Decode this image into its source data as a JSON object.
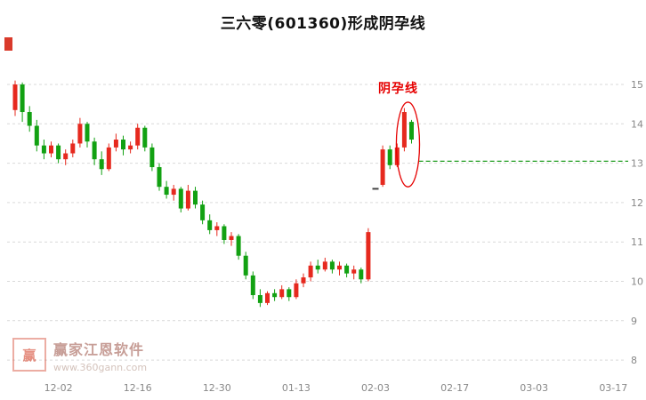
{
  "chart_data": {
    "type": "candlestick",
    "title": "三六零(601360)形成阴孕线",
    "annotation_label": "阴孕线",
    "y_ticks": [
      15,
      14,
      13,
      12,
      11,
      10,
      9,
      8
    ],
    "ylim": [
      7.8,
      15.8
    ],
    "grid": "dashed-horizontal",
    "x_ticks": [
      {
        "label": "12-02",
        "index": 6
      },
      {
        "label": "12-16",
        "index": 17
      },
      {
        "label": "12-30",
        "index": 28
      },
      {
        "label": "01-13",
        "index": 39
      },
      {
        "label": "02-03",
        "index": 50
      },
      {
        "label": "02-17",
        "index": 61
      },
      {
        "label": "03-03",
        "index": 72
      },
      {
        "label": "03-17",
        "index": 83
      }
    ],
    "reference_line": {
      "value": 13.05,
      "style": "dashed",
      "start_index": 56
    },
    "ellipse": {
      "start_index": 54,
      "end_index": 55,
      "top_value": 14.55,
      "bottom_value": 12.4
    },
    "candles": [
      {
        "o": 14.35,
        "h": 15.1,
        "l": 14.2,
        "c": 15.0
      },
      {
        "o": 15.0,
        "h": 15.05,
        "l": 14.05,
        "c": 14.3
      },
      {
        "o": 14.3,
        "h": 14.45,
        "l": 13.8,
        "c": 13.95
      },
      {
        "o": 13.95,
        "h": 14.1,
        "l": 13.3,
        "c": 13.45
      },
      {
        "o": 13.45,
        "h": 13.6,
        "l": 13.1,
        "c": 13.25
      },
      {
        "o": 13.25,
        "h": 13.55,
        "l": 13.15,
        "c": 13.45
      },
      {
        "o": 13.45,
        "h": 13.5,
        "l": 13.0,
        "c": 13.1
      },
      {
        "o": 13.1,
        "h": 13.35,
        "l": 12.95,
        "c": 13.25
      },
      {
        "o": 13.25,
        "h": 13.6,
        "l": 13.15,
        "c": 13.5
      },
      {
        "o": 13.5,
        "h": 14.15,
        "l": 13.4,
        "c": 14.0
      },
      {
        "o": 14.0,
        "h": 14.05,
        "l": 13.4,
        "c": 13.55
      },
      {
        "o": 13.55,
        "h": 13.65,
        "l": 12.95,
        "c": 13.1
      },
      {
        "o": 13.1,
        "h": 13.3,
        "l": 12.7,
        "c": 12.85
      },
      {
        "o": 12.85,
        "h": 13.5,
        "l": 12.8,
        "c": 13.4
      },
      {
        "o": 13.4,
        "h": 13.75,
        "l": 13.3,
        "c": 13.6
      },
      {
        "o": 13.6,
        "h": 13.7,
        "l": 13.2,
        "c": 13.35
      },
      {
        "o": 13.35,
        "h": 13.55,
        "l": 13.25,
        "c": 13.45
      },
      {
        "o": 13.45,
        "h": 14.0,
        "l": 13.35,
        "c": 13.9
      },
      {
        "o": 13.9,
        "h": 13.95,
        "l": 13.3,
        "c": 13.4
      },
      {
        "o": 13.4,
        "h": 13.5,
        "l": 12.8,
        "c": 12.9
      },
      {
        "o": 12.9,
        "h": 13.0,
        "l": 12.3,
        "c": 12.4
      },
      {
        "o": 12.4,
        "h": 12.55,
        "l": 12.1,
        "c": 12.2
      },
      {
        "o": 12.2,
        "h": 12.45,
        "l": 12.05,
        "c": 12.35
      },
      {
        "o": 12.35,
        "h": 12.4,
        "l": 11.75,
        "c": 11.85
      },
      {
        "o": 11.85,
        "h": 12.45,
        "l": 11.8,
        "c": 12.3
      },
      {
        "o": 12.3,
        "h": 12.4,
        "l": 11.85,
        "c": 11.95
      },
      {
        "o": 11.95,
        "h": 12.05,
        "l": 11.45,
        "c": 11.55
      },
      {
        "o": 11.55,
        "h": 11.7,
        "l": 11.2,
        "c": 11.3
      },
      {
        "o": 11.3,
        "h": 11.5,
        "l": 11.15,
        "c": 11.4
      },
      {
        "o": 11.4,
        "h": 11.45,
        "l": 10.95,
        "c": 11.05
      },
      {
        "o": 11.05,
        "h": 11.25,
        "l": 10.9,
        "c": 11.15
      },
      {
        "o": 11.15,
        "h": 11.2,
        "l": 10.55,
        "c": 10.65
      },
      {
        "o": 10.65,
        "h": 10.75,
        "l": 10.05,
        "c": 10.15
      },
      {
        "o": 10.15,
        "h": 10.25,
        "l": 9.55,
        "c": 9.65
      },
      {
        "o": 9.65,
        "h": 9.8,
        "l": 9.35,
        "c": 9.45
      },
      {
        "o": 9.45,
        "h": 9.75,
        "l": 9.4,
        "c": 9.7
      },
      {
        "o": 9.7,
        "h": 9.8,
        "l": 9.5,
        "c": 9.6
      },
      {
        "o": 9.6,
        "h": 9.9,
        "l": 9.55,
        "c": 9.8
      },
      {
        "o": 9.8,
        "h": 9.85,
        "l": 9.5,
        "c": 9.6
      },
      {
        "o": 9.6,
        "h": 10.05,
        "l": 9.55,
        "c": 9.95
      },
      {
        "o": 9.95,
        "h": 10.2,
        "l": 9.85,
        "c": 10.1
      },
      {
        "o": 10.1,
        "h": 10.5,
        "l": 10.0,
        "c": 10.4
      },
      {
        "o": 10.4,
        "h": 10.55,
        "l": 10.2,
        "c": 10.3
      },
      {
        "o": 10.3,
        "h": 10.6,
        "l": 10.25,
        "c": 10.5
      },
      {
        "o": 10.5,
        "h": 10.55,
        "l": 10.2,
        "c": 10.3
      },
      {
        "o": 10.3,
        "h": 10.5,
        "l": 10.15,
        "c": 10.4
      },
      {
        "o": 10.4,
        "h": 10.45,
        "l": 10.1,
        "c": 10.2
      },
      {
        "o": 10.2,
        "h": 10.4,
        "l": 10.05,
        "c": 10.3
      },
      {
        "o": 10.3,
        "h": 10.35,
        "l": 9.95,
        "c": 10.05
      },
      {
        "o": 10.05,
        "h": 11.35,
        "l": 10.0,
        "c": 11.25
      },
      {
        "o": 12.35,
        "h": 12.38,
        "l": 12.32,
        "c": 12.35
      },
      {
        "o": 12.45,
        "h": 13.45,
        "l": 12.4,
        "c": 13.35
      },
      {
        "o": 13.35,
        "h": 13.45,
        "l": 12.85,
        "c": 12.95
      },
      {
        "o": 12.95,
        "h": 13.5,
        "l": 12.9,
        "c": 13.4
      },
      {
        "o": 13.4,
        "h": 14.4,
        "l": 13.3,
        "c": 14.3
      },
      {
        "o": 14.05,
        "h": 14.1,
        "l": 13.5,
        "c": 13.6
      }
    ]
  },
  "watermark": {
    "logo_char": "赢",
    "brand": "赢家江恩软件",
    "url": "www.360gann.com"
  },
  "colors": {
    "up": "#e6291e",
    "down": "#12a112",
    "grid": "#d9d9d9",
    "axis_text": "#888888",
    "annotation": "#e60000",
    "reference_line": "#1f9d1f",
    "flat_candle": "#444444",
    "title": "#111111"
  }
}
